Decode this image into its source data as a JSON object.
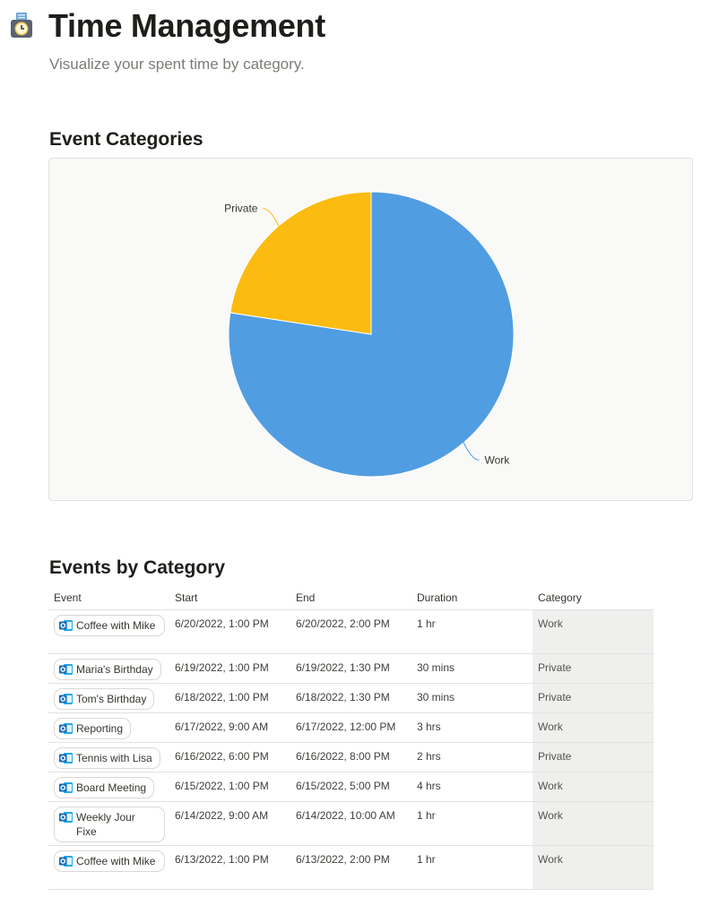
{
  "page": {
    "title": "Time Management",
    "subtitle": "Visualize your spent time by category.",
    "icon": "timer-clock-icon"
  },
  "sections": {
    "chart_heading": "Event Categories",
    "table_heading": "Events by Category"
  },
  "chart_data": {
    "type": "pie",
    "categories": [
      "Work",
      "Private"
    ],
    "values": [
      12,
      3.5
    ],
    "colors": [
      "#519de2",
      "#fbbb10"
    ],
    "title": "",
    "legend": "none"
  },
  "table": {
    "columns": [
      "Event",
      "Start",
      "End",
      "Duration",
      "Category"
    ],
    "rows": [
      {
        "event": "Coffee with Mike",
        "start": "6/20/2022, 1:00 PM",
        "end": "6/20/2022, 2:00 PM",
        "duration": "1 hr",
        "category": "Work"
      },
      {
        "event": "Maria's Birthday",
        "start": "6/19/2022, 1:00 PM",
        "end": "6/19/2022, 1:30 PM",
        "duration": "30 mins",
        "category": "Private"
      },
      {
        "event": "Tom's Birthday",
        "start": "6/18/2022, 1:00 PM",
        "end": "6/18/2022, 1:30 PM",
        "duration": "30 mins",
        "category": "Private"
      },
      {
        "event": "Reporting",
        "start": "6/17/2022, 9:00 AM",
        "end": "6/17/2022, 12:00 PM",
        "duration": "3 hrs",
        "category": "Work"
      },
      {
        "event": "Tennis with Lisa",
        "start": "6/16/2022, 6:00 PM",
        "end": "6/16/2022, 8:00 PM",
        "duration": "2 hrs",
        "category": "Private"
      },
      {
        "event": "Board Meeting",
        "start": "6/15/2022, 1:00 PM",
        "end": "6/15/2022, 5:00 PM",
        "duration": "4 hrs",
        "category": "Work"
      },
      {
        "event": "Weekly Jour Fixe",
        "start": "6/14/2022, 9:00 AM",
        "end": "6/14/2022, 10:00 AM",
        "duration": "1 hr",
        "category": "Work"
      },
      {
        "event": "Coffee with Mike",
        "start": "6/13/2022, 1:00 PM",
        "end": "6/13/2022, 2:00 PM",
        "duration": "1 hr",
        "category": "Work"
      }
    ],
    "event_icon": "outlook-calendar-icon"
  }
}
